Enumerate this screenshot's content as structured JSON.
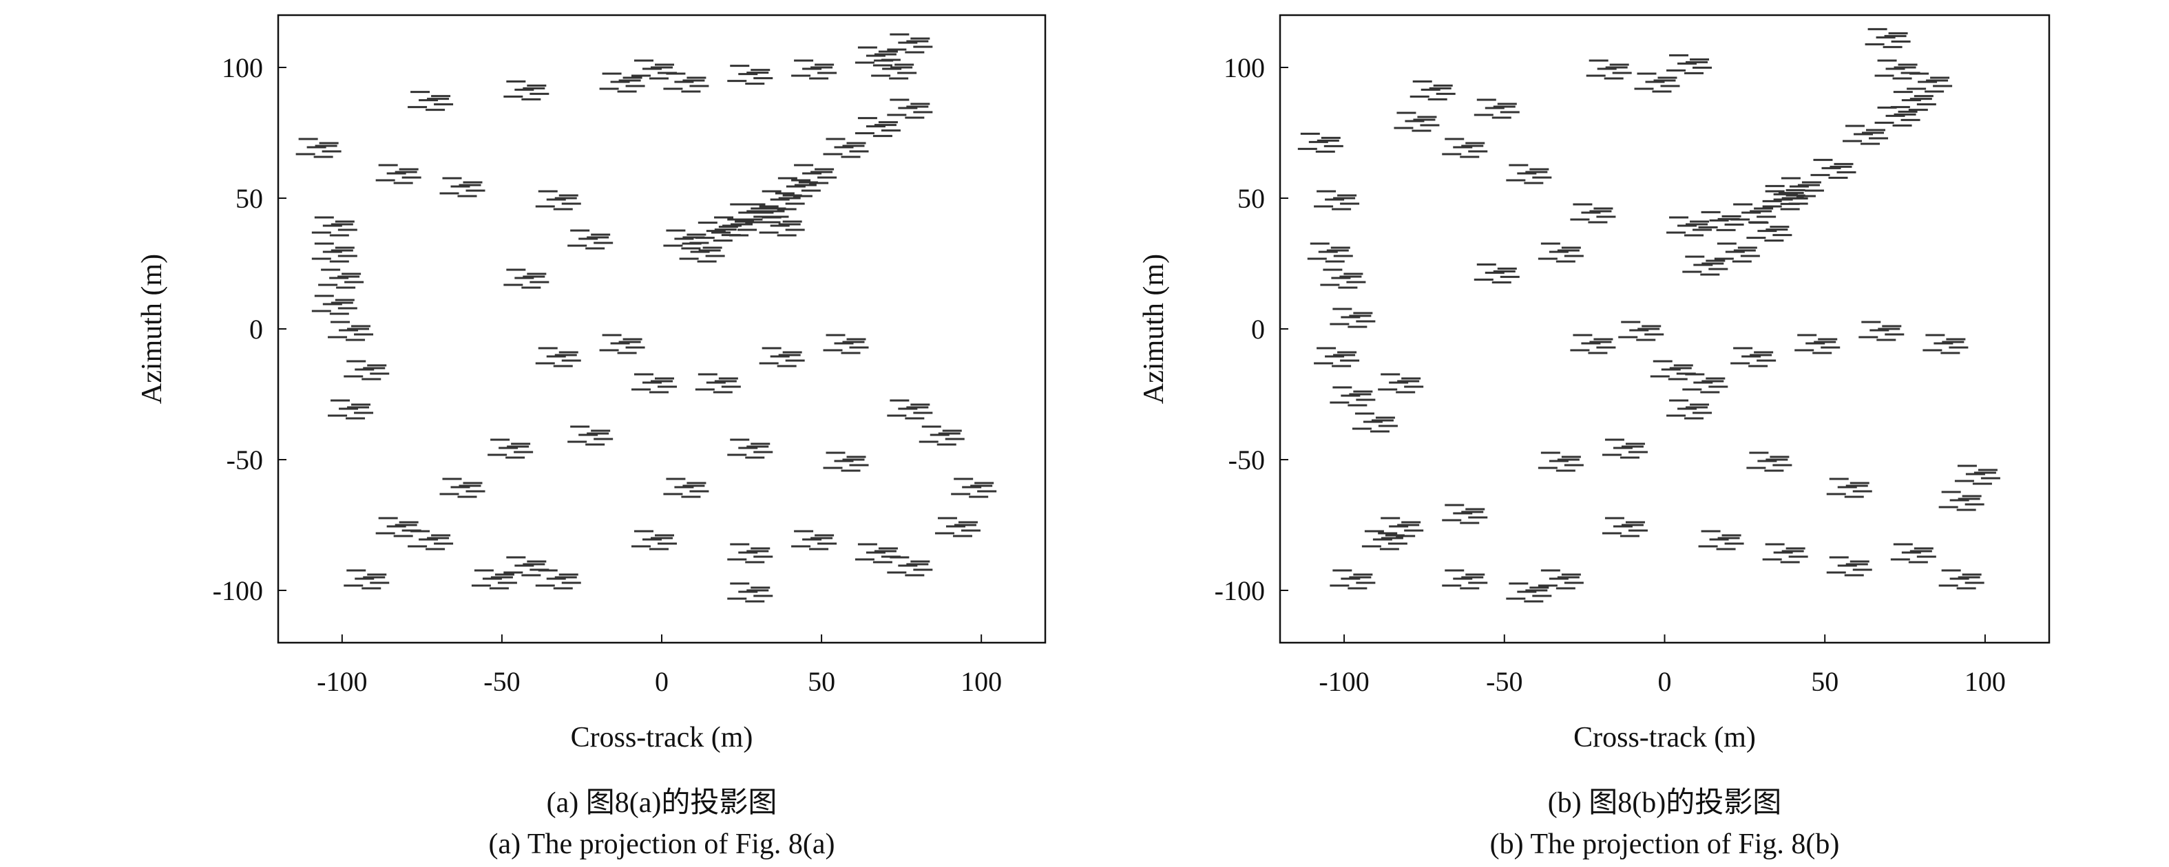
{
  "chart_data": [
    {
      "type": "scatter",
      "xlabel": "Cross-track (m)",
      "ylabel": "Azimuth (m)",
      "caption": [
        "(a) 图8(a)的投影图",
        "(a) The projection of Fig. 8(a)"
      ],
      "xlim": [
        -120,
        120
      ],
      "ylim": [
        -120,
        120
      ],
      "xticks": [
        -100,
        -50,
        0,
        50,
        100
      ],
      "yticks": [
        -100,
        -50,
        0,
        50,
        100
      ],
      "color": "#333333",
      "x": [
        10,
        20,
        30,
        40,
        45,
        50,
        60,
        70,
        80,
        75,
        80,
        70,
        35,
        25,
        40,
        15,
        -10,
        0,
        10,
        30,
        50,
        -40,
        -70,
        -100,
        -98,
        -100,
        -95,
        -90,
        -95,
        -100,
        -105,
        -80,
        -60,
        -30,
        -20,
        -40,
        -30,
        -10,
        0,
        20,
        40,
        60,
        80,
        90,
        100,
        95,
        60,
        30,
        10,
        -20,
        -45,
        -60,
        -80,
        -70,
        -90,
        -50,
        -40,
        -30,
        0,
        30,
        50,
        70,
        80,
        30
      ],
      "values": [
        35,
        38,
        45,
        50,
        55,
        60,
        70,
        78,
        85,
        100,
        110,
        105,
        45,
        40,
        40,
        30,
        95,
        100,
        95,
        98,
        100,
        92,
        88,
        30,
        20,
        10,
        0,
        -15,
        -30,
        40,
        70,
        60,
        55,
        50,
        35,
        20,
        -10,
        -5,
        -20,
        -20,
        -10,
        -5,
        -30,
        -40,
        -60,
        -75,
        -50,
        -45,
        -60,
        -40,
        -45,
        -60,
        -75,
        -80,
        -95,
        -95,
        -90,
        -95,
        -80,
        -85,
        -80,
        -85,
        -90,
        -100
      ]
    },
    {
      "type": "scatter",
      "xlabel": "Cross-track (m)",
      "ylabel": "Azimuth (m)",
      "caption": [
        "(b) 图8(b)的投影图",
        "(b) The projection of Fig. 8(b)"
      ],
      "xlim": [
        -120,
        120
      ],
      "ylim": [
        -120,
        120
      ],
      "xticks": [
        -100,
        -50,
        0,
        50,
        100
      ],
      "yticks": [
        -100,
        -50,
        0,
        50,
        100
      ],
      "color": "#333333",
      "x": [
        10,
        20,
        30,
        40,
        45,
        55,
        65,
        75,
        80,
        75,
        72,
        85,
        35,
        25,
        40,
        15,
        -15,
        0,
        10,
        -70,
        -50,
        -100,
        -102,
        -98,
        -95,
        -100,
        -95,
        -88,
        -80,
        -60,
        -40,
        -20,
        -30,
        -50,
        -20,
        -5,
        5,
        15,
        30,
        50,
        70,
        90,
        100,
        95,
        60,
        35,
        10,
        -10,
        -30,
        -60,
        -80,
        -85,
        -95,
        -60,
        -40,
        -30,
        -10,
        20,
        40,
        60,
        80,
        95,
        -75,
        -105
      ],
      "values": [
        40,
        42,
        45,
        50,
        55,
        62,
        75,
        82,
        88,
        100,
        112,
        95,
        38,
        30,
        52,
        25,
        100,
        95,
        102,
        92,
        85,
        50,
        30,
        20,
        5,
        -10,
        -25,
        -35,
        -20,
        70,
        60,
        45,
        30,
        22,
        -5,
        0,
        -15,
        -20,
        -10,
        -5,
        0,
        -5,
        -55,
        -65,
        -60,
        -50,
        -30,
        -45,
        -50,
        -70,
        -75,
        -80,
        -95,
        -95,
        -100,
        -95,
        -75,
        -80,
        -85,
        -90,
        -85,
        -95,
        80,
        72
      ]
    }
  ]
}
